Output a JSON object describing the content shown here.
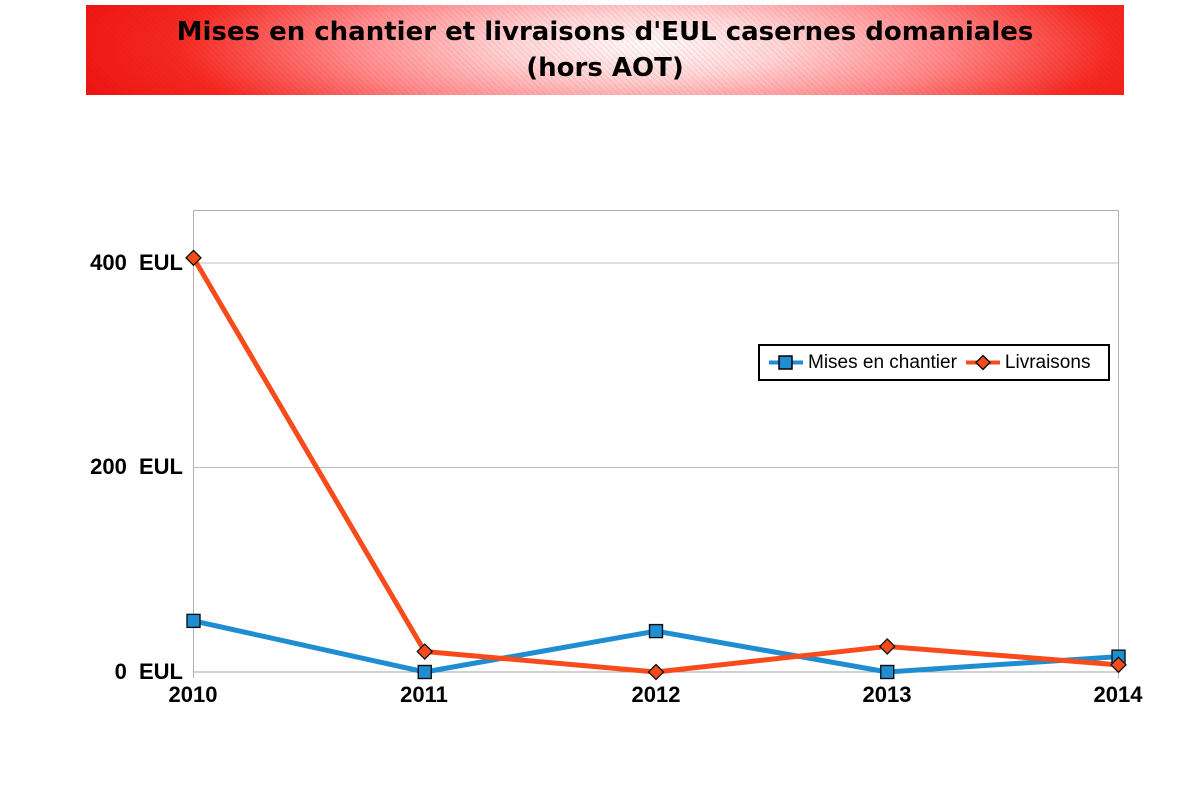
{
  "banner": {
    "title_line1": "Mises en chantier et livraisons d'EUL casernes domaniales",
    "title_line2": "(hors AOT)",
    "background_red": "#ea1010",
    "text_color": "#000000"
  },
  "chart_data": {
    "type": "line",
    "title": "Mises en chantier et livraisons d'EUL casernes domaniales (hors AOT)",
    "categories": [
      "2010",
      "2011",
      "2012",
      "2013",
      "2014"
    ],
    "series": [
      {
        "name": "Mises en chantier",
        "marker": "square",
        "color": "#1f8dd1",
        "values": [
          50,
          0,
          40,
          0,
          15
        ]
      },
      {
        "name": "Livraisons",
        "marker": "diamond",
        "color": "#f74b1c",
        "values": [
          405,
          20,
          0,
          25,
          7
        ]
      }
    ],
    "yticks": [
      {
        "value": 0,
        "label": "0 EUL"
      },
      {
        "value": 200,
        "label": "200 EUL"
      },
      {
        "value": 400,
        "label": "400 EUL"
      }
    ],
    "xlabel": "",
    "ylabel": "",
    "ylim": [
      0,
      450
    ],
    "grid": true,
    "legend_position": "middle-right",
    "line_width": 5
  }
}
